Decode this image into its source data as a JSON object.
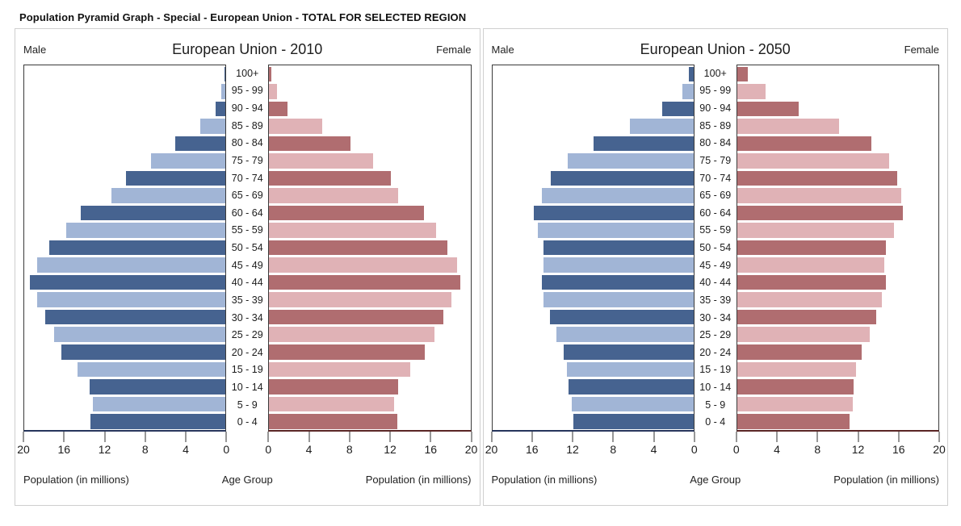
{
  "page_title": "Population Pyramid Graph - Special - European Union - TOTAL FOR SELECTED REGION",
  "colors": {
    "male_dark": "#466390",
    "male_light": "#a1b5d6",
    "female_dark": "#b06d70",
    "female_light": "#e0b2b6",
    "male_axis": "#26355c",
    "female_axis": "#5a2524",
    "panel_border": "#3a3a3a"
  },
  "chart_data": [
    {
      "type": "bar",
      "variant": "population-pyramid",
      "title": "European Union - 2010",
      "left_header": "Male",
      "right_header": "Female",
      "xlabel_left": "Population (in millions)",
      "xlabel_center": "Age Group",
      "xlabel_right": "Population (in millions)",
      "xlim": [
        0,
        20
      ],
      "axis_ticks_male": [
        20,
        16,
        12,
        8,
        4,
        0
      ],
      "axis_ticks_female": [
        0,
        4,
        8,
        12,
        16,
        20
      ],
      "grid": false,
      "categories": [
        "0 - 4",
        "5 - 9",
        "10 - 14",
        "15 - 19",
        "20 - 24",
        "25 - 29",
        "30 - 34",
        "35 - 39",
        "40 - 44",
        "45 - 49",
        "50 - 54",
        "55 - 59",
        "60 - 64",
        "65 - 69",
        "70 - 74",
        "75 - 79",
        "80 - 84",
        "85 - 89",
        "90 - 94",
        "95 - 99",
        "100+"
      ],
      "series": [
        {
          "name": "Male",
          "values": [
            13.4,
            13.2,
            13.5,
            14.7,
            16.3,
            17.0,
            17.9,
            18.7,
            19.4,
            18.7,
            17.5,
            15.8,
            14.4,
            11.3,
            9.9,
            7.4,
            5.0,
            2.5,
            1.0,
            0.4,
            0.1
          ]
        },
        {
          "name": "Female",
          "values": [
            12.7,
            12.4,
            12.8,
            14.0,
            15.5,
            16.4,
            17.3,
            18.1,
            19.0,
            18.7,
            17.7,
            16.6,
            15.4,
            12.8,
            12.1,
            10.3,
            8.1,
            5.3,
            1.8,
            0.8,
            0.2
          ]
        }
      ]
    },
    {
      "type": "bar",
      "variant": "population-pyramid",
      "title": "European Union - 2050",
      "left_header": "Male",
      "right_header": "Female",
      "xlabel_left": "Population (in millions)",
      "xlabel_center": "Age Group",
      "xlabel_right": "Population (in millions)",
      "xlim": [
        0,
        20
      ],
      "axis_ticks_male": [
        20,
        16,
        12,
        8,
        4,
        0
      ],
      "axis_ticks_female": [
        0,
        4,
        8,
        12,
        16,
        20
      ],
      "grid": false,
      "categories": [
        "0 - 4",
        "5 - 9",
        "10 - 14",
        "15 - 19",
        "20 - 24",
        "25 - 29",
        "30 - 34",
        "35 - 39",
        "40 - 44",
        "45 - 49",
        "50 - 54",
        "55 - 59",
        "60 - 64",
        "65 - 69",
        "70 - 74",
        "75 - 79",
        "80 - 84",
        "85 - 89",
        "90 - 94",
        "95 - 99",
        "100+"
      ],
      "series": [
        {
          "name": "Male",
          "values": [
            11.9,
            12.1,
            12.4,
            12.6,
            12.9,
            13.6,
            14.3,
            14.9,
            15.1,
            14.9,
            14.9,
            15.5,
            15.9,
            15.1,
            14.2,
            12.5,
            9.9,
            6.3,
            3.1,
            1.1,
            0.5
          ]
        },
        {
          "name": "Female",
          "values": [
            11.2,
            11.5,
            11.6,
            11.8,
            12.4,
            13.2,
            13.8,
            14.4,
            14.8,
            14.6,
            14.8,
            15.6,
            16.5,
            16.3,
            15.9,
            15.1,
            13.3,
            10.1,
            6.1,
            2.8,
            1.1
          ]
        }
      ]
    }
  ]
}
